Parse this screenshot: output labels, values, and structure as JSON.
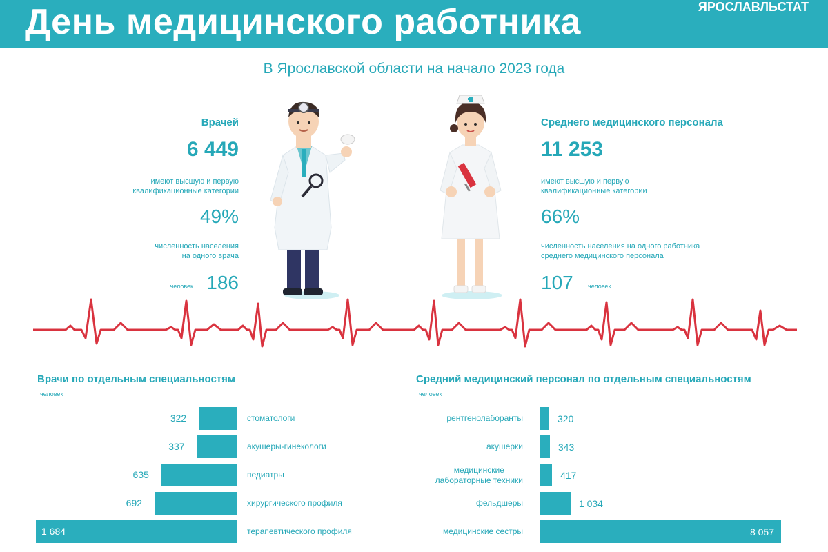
{
  "header": {
    "title": "День медицинского работника",
    "brand": "ЯРОСЛАВЛЬСТАТ"
  },
  "subtitle": "В Ярославской области на начало 2023 года",
  "doctors": {
    "label": "Врачей",
    "count": "6 449",
    "qual_text_1": "имеют высшую и первую",
    "qual_text_2": "квалификационные категории",
    "qual_pct": "49%",
    "pop_text_1": "численность населения",
    "pop_text_2": "на одного врача",
    "unit": "человек",
    "pop_value": "186"
  },
  "nurses": {
    "label": "Среднего медицинского персонала",
    "count": "11 253",
    "qual_text_1": "имеют высшую и первую",
    "qual_text_2": "квалификационные категории",
    "qual_pct": "66%",
    "pop_text_1": "численность населения на одного работника",
    "pop_text_2": "среднего медицинского персонала",
    "pop_value": "107",
    "unit": "человек"
  },
  "colors": {
    "accent": "#2aaebd",
    "text": "#26a8b8",
    "ecg": "#d9333f"
  },
  "chart_data": [
    {
      "type": "bar",
      "title": "Врачи по отдельным специальностям",
      "unit": "человек",
      "orientation": "horizontal",
      "direction": "right-to-left",
      "categories": [
        "стоматологи",
        "акушеры-гинекологи",
        "педиатры",
        "хирургического профиля",
        "терапевтического профиля"
      ],
      "values": [
        322,
        337,
        635,
        692,
        1684
      ],
      "value_labels": [
        "322",
        "337",
        "635",
        "692",
        "1 684"
      ]
    },
    {
      "type": "bar",
      "title": "Средний медицинский персонал по отдельным специальностям",
      "unit": "человек",
      "orientation": "horizontal",
      "direction": "left-to-right",
      "categories": [
        "рентгенолаборанты",
        "акушерки",
        "медицинские лабораторные техники",
        "фельдшеры",
        "медицинские сестры"
      ],
      "category_lines": [
        [
          "рентгенолаборанты"
        ],
        [
          "акушерки"
        ],
        [
          "медицинские",
          "лабораторные техники"
        ],
        [
          "фельдшеры"
        ],
        [
          "медицинские сестры"
        ]
      ],
      "values": [
        320,
        343,
        417,
        1034,
        8057
      ],
      "value_labels": [
        "320",
        "343",
        "417",
        "1 034",
        "8 057"
      ]
    }
  ]
}
